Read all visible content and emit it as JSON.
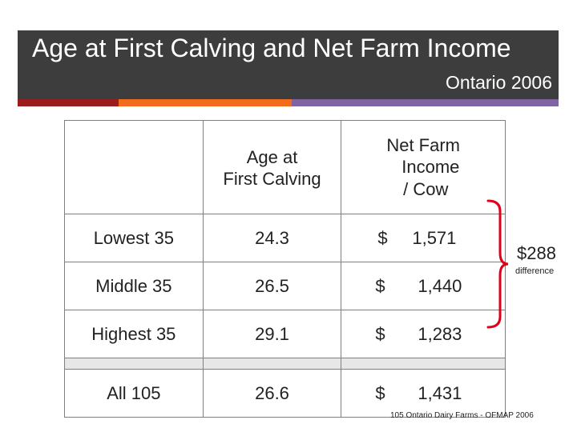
{
  "header": {
    "title": "Age at First Calving and Net Farm Income",
    "subtitle": "Ontario 2006",
    "accent_colors": [
      "#9b1c1c",
      "#f26b1d",
      "#8064a2"
    ]
  },
  "table": {
    "columns": [
      "",
      "Age at\nFirst Calving",
      "Net Farm\n   Income\n / Cow"
    ],
    "rows": [
      {
        "label": "Lowest 35",
        "age": "24.3",
        "currency": "$",
        "income": "1,571"
      },
      {
        "label": "Middle 35",
        "age": "26.5",
        "currency": "$",
        "income": "1,440"
      },
      {
        "label": "Highest 35",
        "age": "29.1",
        "currency": "$",
        "income": "1,283"
      },
      {
        "label": "All 105",
        "age": "26.6",
        "currency": "$",
        "income": "1,431"
      }
    ]
  },
  "callout": {
    "value": "$288",
    "label": "difference",
    "brace_color": "#e0001a"
  },
  "footnote": "105 Ontario Dairy Farms - OFMAP 2006"
}
